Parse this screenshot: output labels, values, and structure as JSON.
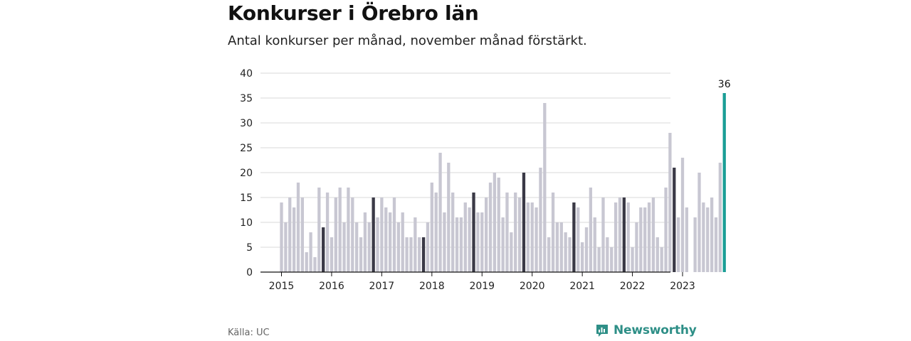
{
  "header": {
    "title": "Konkurser i Örebro län",
    "subtitle": "Antal konkurser per månad, november månad förstärkt."
  },
  "footer": {
    "source": "Källa: UC",
    "brand": "Newsworthy"
  },
  "colors": {
    "bar": "#c8c7d2",
    "highlight": "#3a3946",
    "latest": "#1a9e96",
    "grid": "#d9d9d9",
    "axis": "#111111",
    "brand": "#2e8f87"
  },
  "chart_data": {
    "type": "bar",
    "title": "Konkurser i Örebro län",
    "subtitle": "Antal konkurser per månad, november månad förstärkt.",
    "start": "2015-01",
    "highlight_month": "november",
    "ylim": [
      0,
      40
    ],
    "yticks": [
      "0",
      "5",
      "10",
      "15",
      "20",
      "25",
      "30",
      "35",
      "40"
    ],
    "xtick_labels": [
      "2015",
      "2016",
      "2017",
      "2018",
      "2019",
      "2020",
      "2021",
      "2022",
      "2023"
    ],
    "grid": true,
    "latest_label": "36",
    "values": [
      14,
      10,
      15,
      13,
      18,
      15,
      4,
      8,
      3,
      17,
      9,
      16,
      7,
      15,
      17,
      10,
      17,
      15,
      10,
      7,
      12,
      10,
      15,
      11,
      15,
      13,
      12,
      15,
      10,
      12,
      7,
      7,
      11,
      7,
      7,
      10,
      18,
      16,
      24,
      12,
      22,
      16,
      11,
      11,
      14,
      13,
      16,
      12,
      12,
      15,
      18,
      20,
      19,
      11,
      16,
      8,
      16,
      15,
      20,
      14,
      14,
      13,
      21,
      34,
      7,
      16,
      10,
      10,
      8,
      7,
      14,
      13,
      6,
      9,
      17,
      11,
      5,
      15,
      7,
      5,
      14,
      15,
      15,
      14,
      5,
      10,
      13,
      13,
      14,
      15,
      7,
      5,
      17,
      28,
      21,
      11,
      23,
      13,
      0,
      11,
      20,
      14,
      13,
      15,
      11,
      22,
      36
    ]
  }
}
